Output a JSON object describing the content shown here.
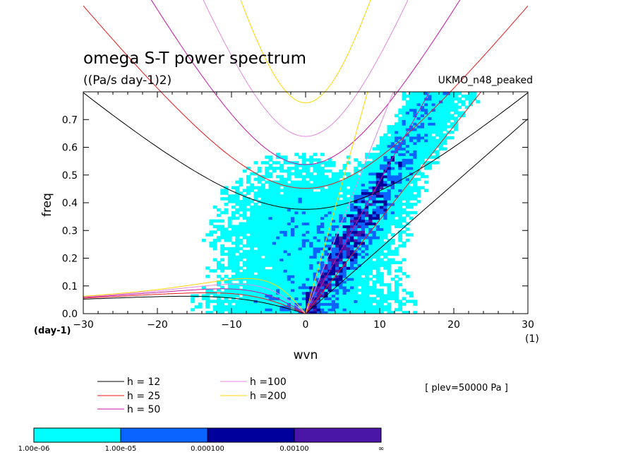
{
  "chart_data": {
    "type": "heatmap",
    "title": "omega S-T power spectrum",
    "units": "((Pa/s day-1)2)",
    "model": "UKMO_n48_peaked",
    "xlabel": "wvn",
    "ylabel": "freq",
    "x_units": "(1)",
    "y_units": "(day-1)",
    "xlim": [
      -30,
      30
    ],
    "ylim": [
      0,
      0.8
    ],
    "xticks": [
      -30,
      -20,
      -10,
      0,
      10,
      20,
      30
    ],
    "yticks": [
      0.0,
      0.1,
      0.2,
      0.3,
      0.4,
      0.5,
      0.6,
      0.7
    ],
    "level_note": "[ plev=50000 Pa ]",
    "colorbar": {
      "labels": [
        "1.00e-06",
        "1.00e-05",
        "0.000100",
        "0.00100",
        "∞"
      ],
      "colors": [
        "#00ffff",
        "#0a64ff",
        "#00009c",
        "#4a16a8"
      ]
    },
    "dispersion_curves": [
      {
        "label": "h = 12",
        "h": 12,
        "color": "#000000"
      },
      {
        "label": "h = 25",
        "h": 25,
        "color": "#e81818"
      },
      {
        "label": "h = 50",
        "h": 50,
        "color": "#c8169e"
      },
      {
        "label": "h =100",
        "h": 100,
        "color": "#e287e2"
      },
      {
        "label": "h =200",
        "h": 200,
        "color": "#ffd700"
      }
    ]
  }
}
